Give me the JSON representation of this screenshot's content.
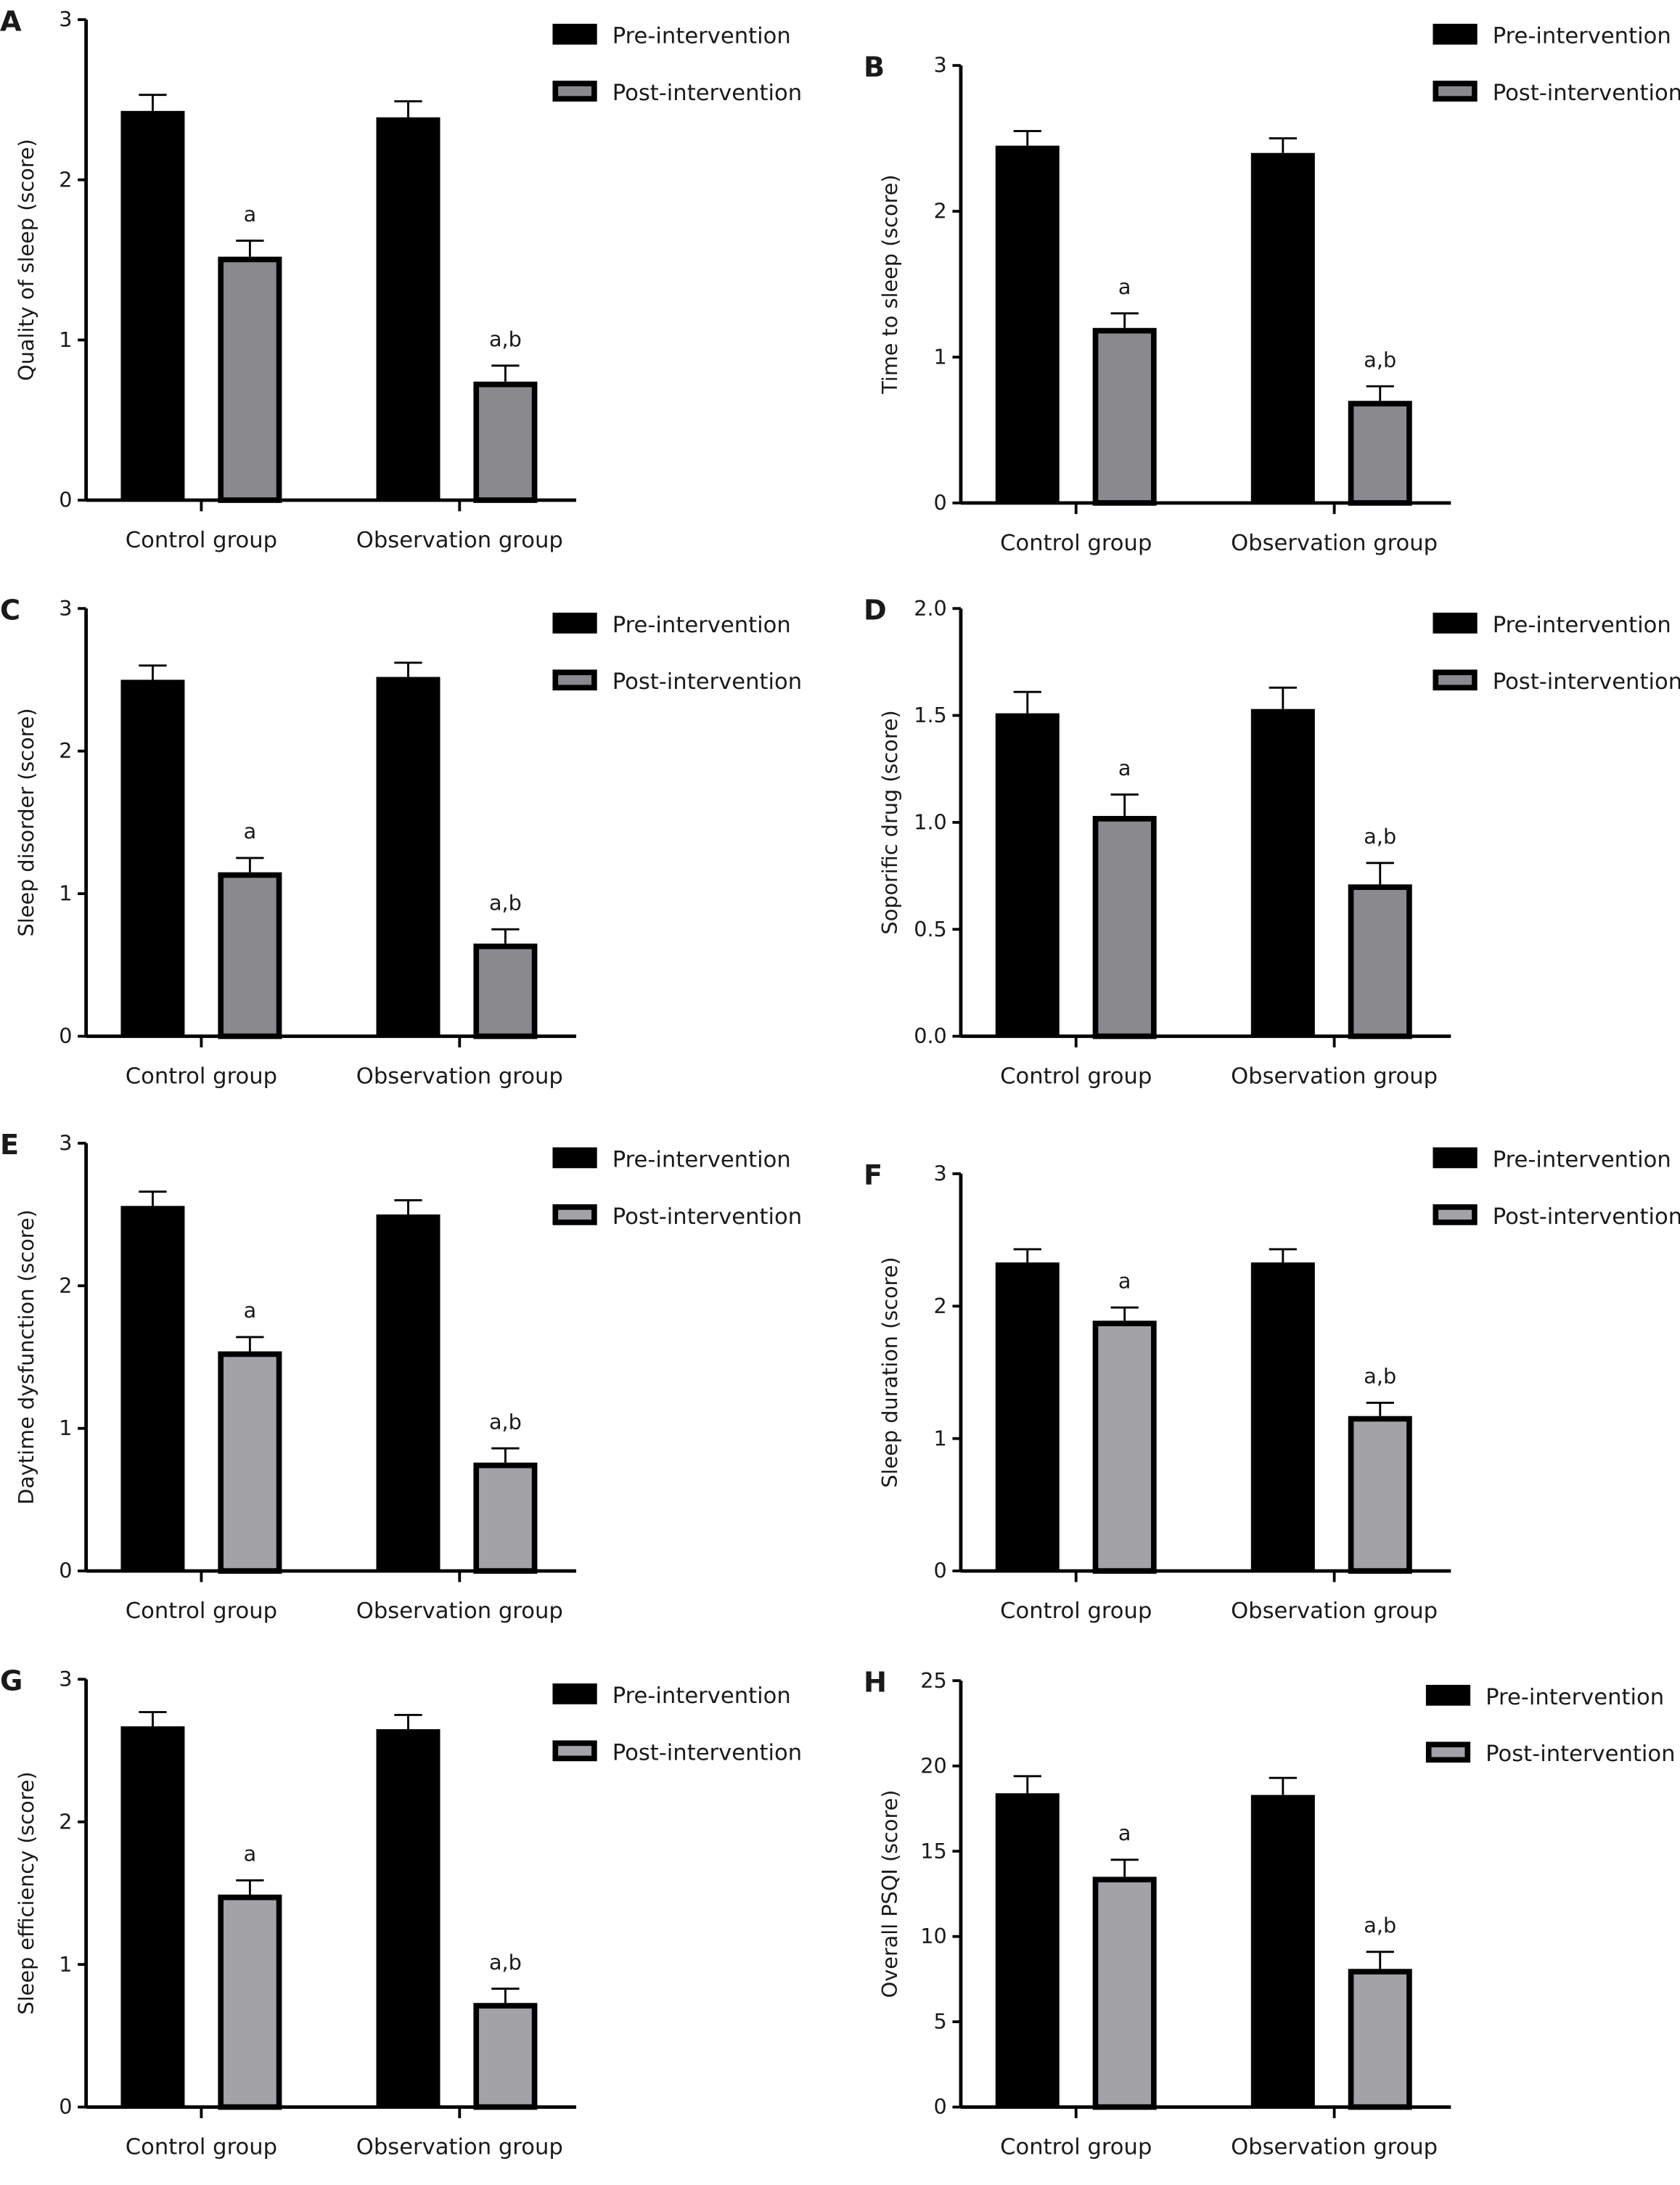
{
  "legend": {
    "pre": "Pre-intervention",
    "post": "Post-intervention"
  },
  "colors": {
    "pre": "#000000",
    "post_A_B_C_D": "#8a898e",
    "post_E_F_G_H": "#a3a2a7",
    "outline": "#000000"
  },
  "chart_data": [
    {
      "panel": "A",
      "type": "bar",
      "ylabel": "Quality of sleep (score)",
      "ylim": [
        0,
        3
      ],
      "yticks": [
        "0",
        "1",
        "2",
        "3"
      ],
      "categories": [
        "Control group",
        "Observation group"
      ],
      "series": [
        {
          "name": "Pre-intervention",
          "values": [
            2.43,
            2.39
          ],
          "errors": [
            0.1,
            0.1
          ]
        },
        {
          "name": "Post-intervention",
          "values": [
            1.52,
            0.74
          ],
          "errors": [
            0.1,
            0.1
          ],
          "labels": [
            "a",
            "a,b"
          ]
        }
      ]
    },
    {
      "panel": "B",
      "type": "bar",
      "ylabel": "Time to sleep (score)",
      "ylim": [
        0,
        3
      ],
      "yticks": [
        "0",
        "1",
        "2",
        "3"
      ],
      "categories": [
        "Control group",
        "Observation group"
      ],
      "series": [
        {
          "name": "Pre-intervention",
          "values": [
            2.45,
            2.4
          ],
          "errors": [
            0.1,
            0.1
          ]
        },
        {
          "name": "Post-intervention",
          "values": [
            1.2,
            0.7
          ],
          "errors": [
            0.1,
            0.1
          ],
          "labels": [
            "a",
            "a,b"
          ]
        }
      ]
    },
    {
      "panel": "C",
      "type": "bar",
      "ylabel": "Sleep disorder (score)",
      "ylim": [
        0,
        3
      ],
      "yticks": [
        "0",
        "1",
        "2",
        "3"
      ],
      "categories": [
        "Control group",
        "Observation group"
      ],
      "series": [
        {
          "name": "Pre-intervention",
          "values": [
            2.5,
            2.52
          ],
          "errors": [
            0.1,
            0.1
          ]
        },
        {
          "name": "Post-intervention",
          "values": [
            1.15,
            0.65
          ],
          "errors": [
            0.1,
            0.1
          ],
          "labels": [
            "a",
            "a,b"
          ]
        }
      ]
    },
    {
      "panel": "D",
      "type": "bar",
      "ylabel": "Soporific drug (score)",
      "ylim": [
        0,
        2
      ],
      "yticks": [
        "0.0",
        "0.5",
        "1.0",
        "1.5",
        "2.0"
      ],
      "categories": [
        "Control group",
        "Observation group"
      ],
      "series": [
        {
          "name": "Pre-intervention",
          "values": [
            1.51,
            1.53
          ],
          "errors": [
            0.1,
            0.1
          ]
        },
        {
          "name": "Post-intervention",
          "values": [
            1.03,
            0.71
          ],
          "errors": [
            0.1,
            0.1
          ],
          "labels": [
            "a",
            "a,b"
          ]
        }
      ]
    },
    {
      "panel": "E",
      "type": "bar",
      "ylabel": "Daytime dysfunction (score)",
      "ylim": [
        0,
        3
      ],
      "yticks": [
        "0",
        "1",
        "2",
        "3"
      ],
      "categories": [
        "Control group",
        "Observation group"
      ],
      "series": [
        {
          "name": "Pre-intervention",
          "values": [
            2.56,
            2.5
          ],
          "errors": [
            0.1,
            0.1
          ]
        },
        {
          "name": "Post-intervention",
          "values": [
            1.54,
            0.76
          ],
          "errors": [
            0.1,
            0.1
          ],
          "labels": [
            "a",
            "a,b"
          ]
        }
      ]
    },
    {
      "panel": "F",
      "type": "bar",
      "ylabel": "Sleep duration (score)",
      "ylim": [
        0,
        3
      ],
      "yticks": [
        "0",
        "1",
        "2",
        "3"
      ],
      "categories": [
        "Control group",
        "Observation group"
      ],
      "series": [
        {
          "name": "Pre-intervention",
          "values": [
            2.33,
            2.33
          ],
          "errors": [
            0.1,
            0.1
          ]
        },
        {
          "name": "Post-intervention",
          "values": [
            1.89,
            1.17
          ],
          "errors": [
            0.1,
            0.1
          ],
          "labels": [
            "a",
            "a,b"
          ]
        }
      ]
    },
    {
      "panel": "G",
      "type": "bar",
      "ylabel": "Sleep efficiency (score)",
      "ylim": [
        0,
        3
      ],
      "yticks": [
        "0",
        "1",
        "2",
        "3"
      ],
      "categories": [
        "Control group",
        "Observation group"
      ],
      "series": [
        {
          "name": "Pre-intervention",
          "values": [
            2.67,
            2.65
          ],
          "errors": [
            0.1,
            0.1
          ]
        },
        {
          "name": "Post-intervention",
          "values": [
            1.49,
            0.73
          ],
          "errors": [
            0.1,
            0.1
          ],
          "labels": [
            "a",
            "a,b"
          ]
        }
      ]
    },
    {
      "panel": "H",
      "type": "bar",
      "ylabel": "Overall PSQI (score)",
      "ylim": [
        0,
        25
      ],
      "yticks": [
        "0",
        "5",
        "10",
        "15",
        "20",
        "25"
      ],
      "categories": [
        "Control group",
        "Observation group"
      ],
      "series": [
        {
          "name": "Pre-intervention",
          "values": [
            18.4,
            18.3
          ],
          "errors": [
            1.0,
            1.0
          ]
        },
        {
          "name": "Post-intervention",
          "values": [
            13.5,
            8.1
          ],
          "errors": [
            1.0,
            1.0
          ],
          "labels": [
            "a",
            "a,b"
          ]
        }
      ]
    }
  ]
}
